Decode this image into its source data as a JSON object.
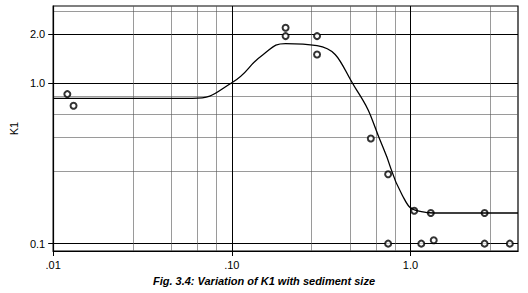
{
  "chart_data": {
    "type": "scatter",
    "title": "Fig. 3.4: Variation of K1 with sediment size",
    "y_label": "K1",
    "log": true,
    "grid": true,
    "color": "#000000",
    "marker": "circle",
    "x": [
      0.012,
      0.013,
      0.2,
      0.2,
      0.3,
      0.3,
      0.6,
      0.75,
      0.75,
      1.05,
      1.15,
      1.3,
      1.35,
      2.6,
      2.6,
      3.6
    ],
    "values": [
      0.85,
      0.72,
      2.2,
      1.95,
      1.95,
      1.5,
      0.45,
      0.27,
      0.1,
      0.16,
      0.1,
      0.155,
      0.105,
      0.155,
      0.1,
      0.1
    ],
    "curve": {
      "type": "line",
      "line_style": "solid",
      "x": [
        0.01,
        0.06,
        0.1,
        0.15,
        0.2,
        0.3,
        0.5,
        0.7,
        0.9,
        1.1,
        1.5,
        4
      ],
      "values": [
        0.8,
        0.8,
        1.0,
        1.5,
        1.75,
        1.7,
        0.9,
        0.4,
        0.2,
        0.16,
        0.155,
        0.155
      ]
    },
    "xlim": [
      0.01,
      4
    ],
    "xticks": [
      {
        "value": 0.01,
        "label": ".01"
      },
      {
        "value": 0.1,
        "label": ".10"
      },
      {
        "value": 1,
        "label": "1.0"
      }
    ],
    "ylim": [
      0.09,
      3
    ],
    "yticks": [
      0.1,
      {
        "value": 1,
        "label": "1.0"
      },
      {
        "value": 2,
        "label": "2.0"
      }
    ]
  }
}
